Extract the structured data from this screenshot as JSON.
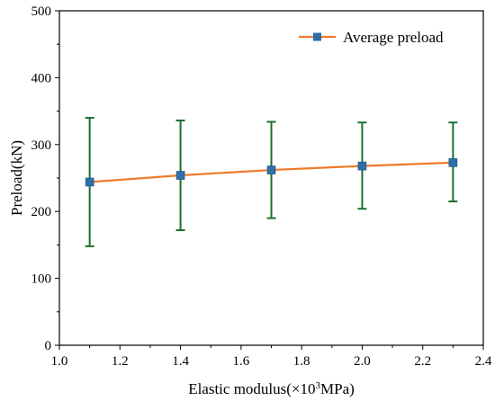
{
  "chart_data": {
    "type": "line",
    "title": "",
    "xlabel_main": "Elastic modulus(×10",
    "xlabel_sup": "3",
    "xlabel_tail": "MPa)",
    "ylabel": "Preload(kN)",
    "xlim": [
      1.0,
      2.4
    ],
    "ylim": [
      0,
      500
    ],
    "x_ticks": [
      "1.0",
      "1.2",
      "1.4",
      "1.6",
      "1.8",
      "2.0",
      "2.2",
      "2.4"
    ],
    "y_ticks": [
      "0",
      "100",
      "200",
      "300",
      "400",
      "500"
    ],
    "grid": false,
    "legend_position": "top-right",
    "series": [
      {
        "name": "Average preload",
        "line_color": "#F07A2A",
        "marker_color": "#2E6FA8",
        "error_bar_color": "#1F6E2E",
        "x": [
          1.1,
          1.4,
          1.7,
          2.0,
          2.3
        ],
        "y": [
          244,
          254,
          262,
          268,
          273
        ],
        "y_err_upper": [
          340,
          336,
          334,
          333,
          333
        ],
        "y_err_lower": [
          148,
          172,
          190,
          204,
          215
        ]
      }
    ]
  }
}
